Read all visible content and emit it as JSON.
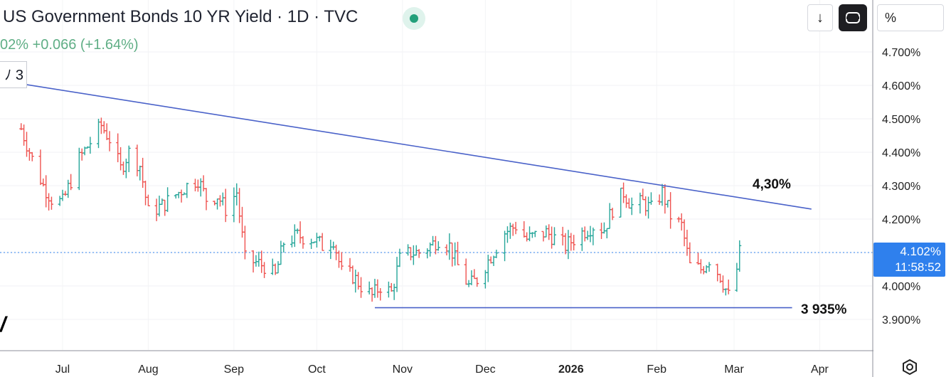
{
  "header": {
    "title": "US Government Bonds 10 YR Yield · 1D · TVC",
    "change_text": "02%  +0.066 (+1.64%)",
    "counter_label": "ﾉ 3",
    "status_color": "#22a07a"
  },
  "toolbar": {
    "download_icon": "↓",
    "fullscreen_icon": "fullscreen-icon",
    "scale_label": "%"
  },
  "price_label": {
    "price": "4.102%",
    "countdown": "11:58:52",
    "color": "#2f80ed"
  },
  "annotations": {
    "resistance_label": "4,30%",
    "support_label": "3 935%",
    "line_color": "#4a62c9"
  },
  "chart_data": {
    "type": "ohlc",
    "ylim": [
      3.82,
      4.76
    ],
    "y_ticks": [
      3.9,
      4.0,
      4.1,
      4.2,
      4.3,
      4.4,
      4.5,
      4.6,
      4.7
    ],
    "y_tick_labels": [
      "3.900%",
      "4.000%",
      "4.100%",
      "4.200%",
      "4.300%",
      "4.400%",
      "4.500%",
      "4.600%",
      "4.700%"
    ],
    "x_ticks": [
      {
        "label": "Jul",
        "date": "2025-07-01"
      },
      {
        "label": "Aug",
        "date": "2025-08-01"
      },
      {
        "label": "Sep",
        "date": "2025-09-01"
      },
      {
        "label": "Oct",
        "date": "2025-10-01"
      },
      {
        "label": "Nov",
        "date": "2025-11-01"
      },
      {
        "label": "Dec",
        "date": "2025-12-01"
      },
      {
        "label": "2026",
        "date": "2026-01-01",
        "bold": true
      },
      {
        "label": "Feb",
        "date": "2026-02-01"
      },
      {
        "label": "Mar",
        "date": "2026-03-01"
      },
      {
        "label": "Apr",
        "date": "2026-04-01"
      }
    ],
    "up_color": "#26a69a",
    "down_color": "#ef5350",
    "last_price": 4.102,
    "trendlines": [
      {
        "name": "resistance",
        "start": {
          "date": "2025-06-12",
          "value": 4.61
        },
        "end": {
          "date": "2026-03-29",
          "value": 4.23
        }
      },
      {
        "name": "support",
        "start": {
          "date": "2025-10-22",
          "value": 3.935
        },
        "end": {
          "date": "2026-03-22",
          "value": 3.935
        }
      }
    ],
    "path": [
      [
        "2025-06-16",
        4.47
      ],
      [
        "2025-06-20",
        4.38
      ],
      [
        "2025-06-24",
        4.3
      ],
      [
        "2025-06-27",
        4.26
      ],
      [
        "2025-07-01",
        4.25
      ],
      [
        "2025-07-07",
        4.38
      ],
      [
        "2025-07-11",
        4.43
      ],
      [
        "2025-07-15",
        4.48
      ],
      [
        "2025-07-18",
        4.44
      ],
      [
        "2025-07-22",
        4.35
      ],
      [
        "2025-07-25",
        4.4
      ],
      [
        "2025-07-29",
        4.36
      ],
      [
        "2025-08-01",
        4.22
      ],
      [
        "2025-08-06",
        4.24
      ],
      [
        "2025-08-12",
        4.28
      ],
      [
        "2025-08-15",
        4.3
      ],
      [
        "2025-08-19",
        4.32
      ],
      [
        "2025-08-22",
        4.26
      ],
      [
        "2025-08-26",
        4.27
      ],
      [
        "2025-08-29",
        4.23
      ],
      [
        "2025-09-02",
        4.28
      ],
      [
        "2025-09-05",
        4.08
      ],
      [
        "2025-09-09",
        4.07
      ],
      [
        "2025-09-12",
        4.06
      ],
      [
        "2025-09-16",
        4.03
      ],
      [
        "2025-09-19",
        4.13
      ],
      [
        "2025-09-24",
        4.15
      ],
      [
        "2025-09-30",
        4.14
      ],
      [
        "2025-10-03",
        4.12
      ],
      [
        "2025-10-07",
        4.14
      ],
      [
        "2025-10-10",
        4.04
      ],
      [
        "2025-10-14",
        4.03
      ],
      [
        "2025-10-17",
        4.0
      ],
      [
        "2025-10-21",
        3.97
      ],
      [
        "2025-10-24",
        4.0
      ],
      [
        "2025-10-28",
        3.98
      ],
      [
        "2025-10-31",
        4.08
      ],
      [
        "2025-11-04",
        4.1
      ],
      [
        "2025-11-07",
        4.1
      ],
      [
        "2025-11-11",
        4.12
      ],
      [
        "2025-11-14",
        4.14
      ],
      [
        "2025-11-18",
        4.12
      ],
      [
        "2025-11-21",
        4.06
      ],
      [
        "2025-11-25",
        4.0
      ],
      [
        "2025-11-28",
        4.02
      ],
      [
        "2025-12-03",
        4.09
      ],
      [
        "2025-12-08",
        4.16
      ],
      [
        "2025-12-12",
        4.18
      ],
      [
        "2025-12-16",
        4.14
      ],
      [
        "2025-12-19",
        4.15
      ],
      [
        "2025-12-23",
        4.16
      ],
      [
        "2025-12-30",
        4.12
      ],
      [
        "2026-01-05",
        4.16
      ],
      [
        "2026-01-09",
        4.18
      ],
      [
        "2026-01-13",
        4.17
      ],
      [
        "2026-01-16",
        4.23
      ],
      [
        "2026-01-20",
        4.28
      ],
      [
        "2026-01-23",
        4.24
      ],
      [
        "2026-01-27",
        4.25
      ],
      [
        "2026-01-30",
        4.23
      ],
      [
        "2026-02-03",
        4.28
      ],
      [
        "2026-02-06",
        4.21
      ],
      [
        "2026-02-10",
        4.18
      ],
      [
        "2026-02-13",
        4.06
      ],
      [
        "2026-02-17",
        4.05
      ],
      [
        "2026-02-20",
        4.08
      ],
      [
        "2026-02-24",
        4.03
      ],
      [
        "2026-02-27",
        3.97
      ],
      [
        "2026-03-02",
        4.05
      ],
      [
        "2026-03-03",
        4.1
      ]
    ]
  }
}
